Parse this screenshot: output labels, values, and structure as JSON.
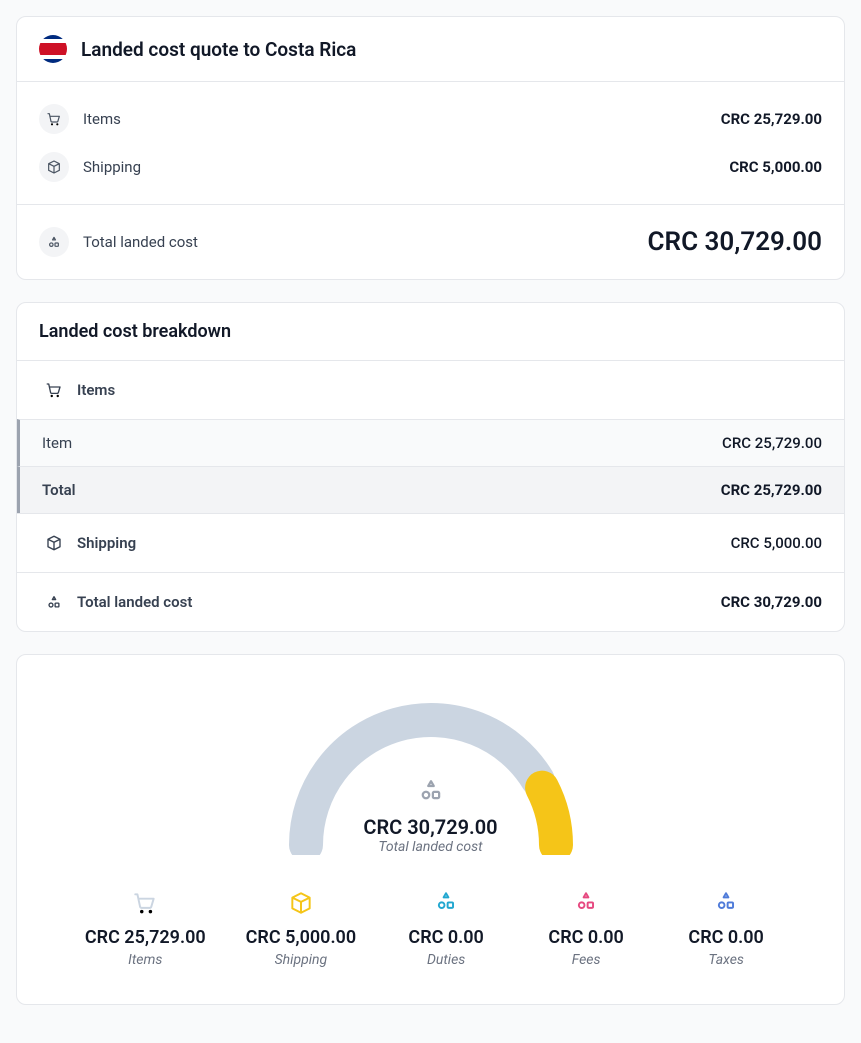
{
  "quote": {
    "title": "Landed cost quote to Costa Rica",
    "flag": {
      "stripes": [
        {
          "color": "#002b7f",
          "h": 4
        },
        {
          "color": "#ffffff",
          "h": 4
        },
        {
          "color": "#ce1126",
          "h": 12
        },
        {
          "color": "#ffffff",
          "h": 4
        },
        {
          "color": "#002b7f",
          "h": 4
        }
      ]
    },
    "items_label": "Items",
    "items_value": "CRC 25,729.00",
    "shipping_label": "Shipping",
    "shipping_value": "CRC 5,000.00",
    "total_label": "Total landed cost",
    "total_value": "CRC 30,729.00"
  },
  "breakdown": {
    "title": "Landed cost breakdown",
    "items_header": "Items",
    "item_rows": [
      {
        "label": "Item",
        "value": "CRC 25,729.00"
      }
    ],
    "items_total_label": "Total",
    "items_total_value": "CRC 25,729.00",
    "shipping_label": "Shipping",
    "shipping_value": "CRC 5,000.00",
    "total_label": "Total landed cost",
    "total_value": "CRC 30,729.00"
  },
  "gauge": {
    "total_value": "CRC 30,729.00",
    "total_label": "Total landed cost",
    "segments": [
      {
        "name": "items",
        "fraction": 0.8372,
        "color": "#cbd5e1"
      },
      {
        "name": "shipping",
        "fraction": 0.1628,
        "color": "#f5c518"
      }
    ],
    "track_color": "#e5e7eb",
    "stroke_width": 34,
    "legend": [
      {
        "key": "items",
        "icon": "cart-icon",
        "color": "#cbd5e1",
        "value": "CRC 25,729.00",
        "label": "Items"
      },
      {
        "key": "shipping",
        "icon": "package-icon",
        "color": "#f5c518",
        "value": "CRC 5,000.00",
        "label": "Shipping"
      },
      {
        "key": "duties",
        "icon": "shapes-icon",
        "color": "#22a7d0",
        "value": "CRC 0.00",
        "label": "Duties"
      },
      {
        "key": "fees",
        "icon": "shapes-icon",
        "color": "#e64980",
        "value": "CRC 0.00",
        "label": "Fees"
      },
      {
        "key": "taxes",
        "icon": "shapes-icon",
        "color": "#4f7bd9",
        "value": "CRC 0.00",
        "label": "Taxes"
      }
    ]
  },
  "colors": {
    "page_bg": "#f9fafb",
    "card_bg": "#ffffff",
    "border": "#e5e7eb",
    "text": "#111827",
    "text_muted": "#6b7280",
    "icon_muted": "#9ca3af",
    "sub_bg": "#f9fafb",
    "total_bg": "#f3f4f6",
    "accent_bar": "#9ca3af"
  }
}
